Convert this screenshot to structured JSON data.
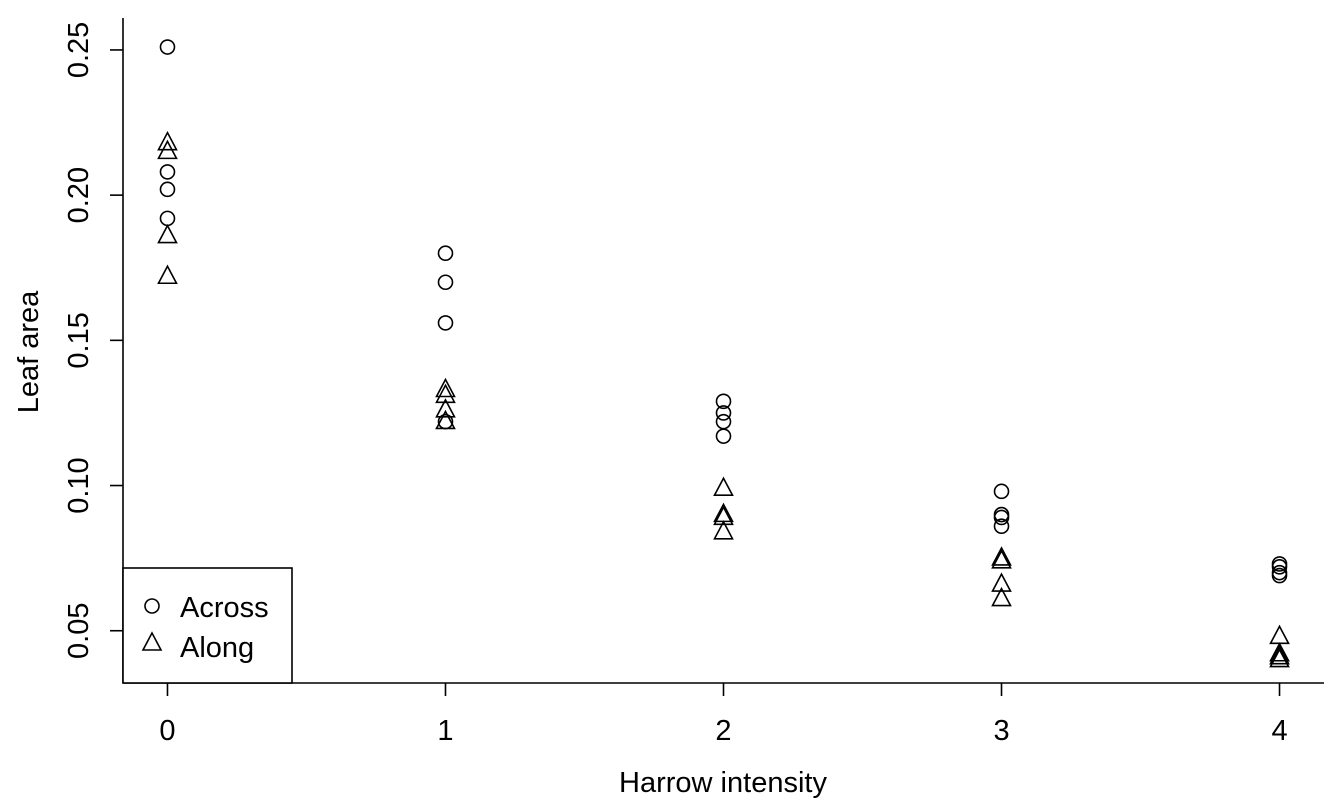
{
  "chart_data": {
    "type": "scatter",
    "title": "",
    "xlabel": "Harrow intensity",
    "ylabel": "Leaf area",
    "xlim": [
      -0.16,
      4.16
    ],
    "ylim": [
      0.032,
      0.261
    ],
    "x_ticks": [
      0,
      1,
      2,
      3,
      4
    ],
    "x_tick_labels": [
      "0",
      "1",
      "2",
      "3",
      "4"
    ],
    "y_ticks": [
      0.05,
      0.1,
      0.15,
      0.2,
      0.25
    ],
    "y_tick_labels": [
      "0.05",
      "0.10",
      "0.15",
      "0.20",
      "0.25"
    ],
    "grid": false,
    "legend_position": "bottom-left",
    "series": [
      {
        "name": "Across",
        "marker": "circle",
        "points": [
          [
            0,
            0.251
          ],
          [
            0,
            0.208
          ],
          [
            0,
            0.202
          ],
          [
            0,
            0.192
          ],
          [
            1,
            0.18
          ],
          [
            1,
            0.17
          ],
          [
            1,
            0.156
          ],
          [
            1,
            0.122
          ],
          [
            2,
            0.129
          ],
          [
            2,
            0.125
          ],
          [
            2,
            0.122
          ],
          [
            2,
            0.117
          ],
          [
            3,
            0.098
          ],
          [
            3,
            0.09
          ],
          [
            3,
            0.089
          ],
          [
            3,
            0.086
          ],
          [
            4,
            0.073
          ],
          [
            4,
            0.072
          ],
          [
            4,
            0.07
          ],
          [
            4,
            0.069
          ]
        ]
      },
      {
        "name": "Along",
        "marker": "triangle",
        "points": [
          [
            0,
            0.218
          ],
          [
            0,
            0.215
          ],
          [
            0,
            0.186
          ],
          [
            0,
            0.172
          ],
          [
            1,
            0.133
          ],
          [
            1,
            0.131
          ],
          [
            1,
            0.126
          ],
          [
            1,
            0.122
          ],
          [
            2,
            0.099
          ],
          [
            2,
            0.09
          ],
          [
            2,
            0.089
          ],
          [
            2,
            0.084
          ],
          [
            3,
            0.075
          ],
          [
            3,
            0.074
          ],
          [
            3,
            0.066
          ],
          [
            3,
            0.061
          ],
          [
            4,
            0.048
          ],
          [
            4,
            0.042
          ],
          [
            4,
            0.041
          ],
          [
            4,
            0.04
          ]
        ]
      }
    ]
  }
}
